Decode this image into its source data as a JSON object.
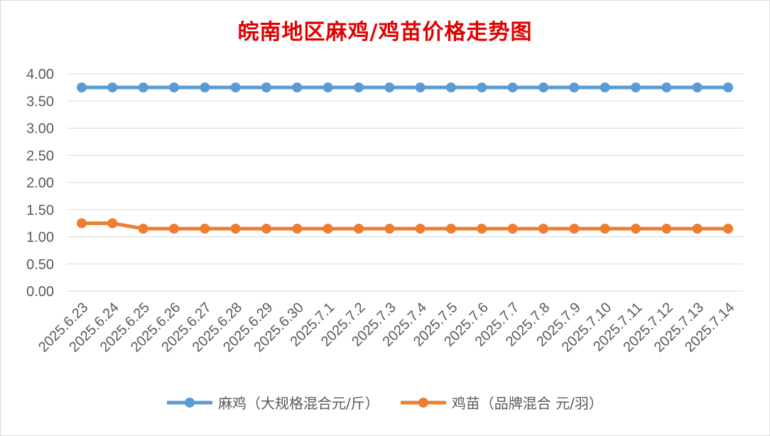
{
  "chart_data": {
    "type": "line",
    "title": "皖南地区麻鸡/鸡苗价格走势图",
    "categories": [
      "2025.6.23",
      "2025.6.24",
      "2025.6.25",
      "2025.6.26",
      "2025.6.27",
      "2025.6.28",
      "2025.6.29",
      "2025.6.30",
      "2025.7.1",
      "2025.7.2",
      "2025.7.3",
      "2025.7.4",
      "2025.7.5",
      "2025.7.6",
      "2025.7.7",
      "2025.7.8",
      "2025.7.9",
      "2025.7.10",
      "2025.7.11",
      "2025.7.12",
      "2025.7.13",
      "2025.7.14"
    ],
    "series": [
      {
        "name": "麻鸡（大规格混合元/斤）",
        "color": "#5b9bd5",
        "values": [
          3.75,
          3.75,
          3.75,
          3.75,
          3.75,
          3.75,
          3.75,
          3.75,
          3.75,
          3.75,
          3.75,
          3.75,
          3.75,
          3.75,
          3.75,
          3.75,
          3.75,
          3.75,
          3.75,
          3.75,
          3.75,
          3.75
        ]
      },
      {
        "name": "鸡苗（品牌混合 元/羽）",
        "color": "#ed7d31",
        "values": [
          1.25,
          1.25,
          1.15,
          1.15,
          1.15,
          1.15,
          1.15,
          1.15,
          1.15,
          1.15,
          1.15,
          1.15,
          1.15,
          1.15,
          1.15,
          1.15,
          1.15,
          1.15,
          1.15,
          1.15,
          1.15,
          1.15
        ]
      }
    ],
    "yticks": [
      "0.00",
      "0.50",
      "1.00",
      "1.50",
      "2.00",
      "2.50",
      "3.00",
      "3.50",
      "4.00"
    ],
    "ylim": [
      0,
      4
    ],
    "grid": true,
    "legend_position": "bottom"
  }
}
